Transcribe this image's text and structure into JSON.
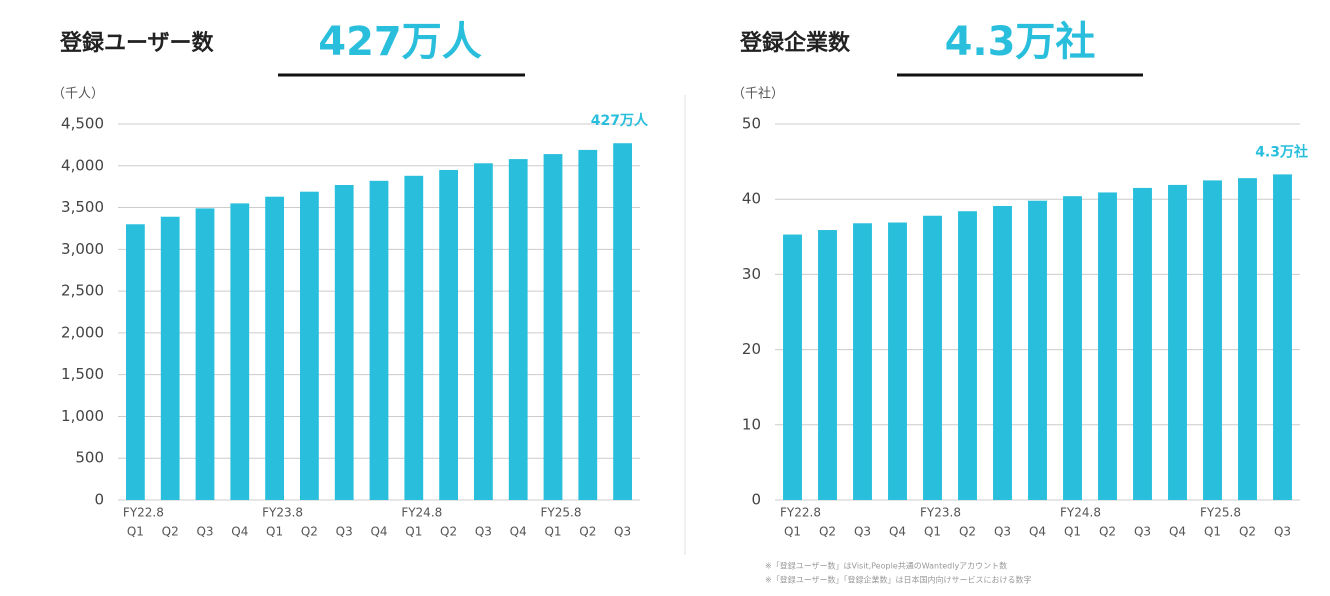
{
  "chart_data": [
    {
      "type": "bar",
      "title": "登録ユーザー数",
      "headline": "427万人",
      "unit_label": "（千人）",
      "annotation": "427万人",
      "categories": [
        "Q1",
        "Q2",
        "Q3",
        "Q4",
        "Q1",
        "Q2",
        "Q3",
        "Q4",
        "Q1",
        "Q2",
        "Q3",
        "Q4",
        "Q1",
        "Q2",
        "Q3"
      ],
      "x_groups": [
        "FY22.8",
        null,
        null,
        null,
        "FY23.8",
        null,
        null,
        null,
        "FY24.8",
        null,
        null,
        null,
        "FY25.8",
        null,
        null
      ],
      "values": [
        3300,
        3390,
        3490,
        3550,
        3630,
        3690,
        3770,
        3820,
        3880,
        3950,
        4030,
        4080,
        4140,
        4190,
        4270
      ],
      "color": "#29bfdc",
      "ylim": [
        0,
        4500
      ],
      "yticks": [
        0,
        500,
        {
          "value": 1000,
          "label": "1,000"
        },
        {
          "value": 1500,
          "label": "1,500"
        },
        {
          "value": 2000,
          "label": "2,000"
        },
        {
          "value": 2500,
          "label": "2,500"
        },
        {
          "value": 3000,
          "label": "3,000"
        },
        {
          "value": 3500,
          "label": "3,500"
        },
        {
          "value": 4000,
          "label": "4,000"
        },
        {
          "value": 4500,
          "label": "4,500"
        }
      ],
      "grid": true
    },
    {
      "type": "bar",
      "title": "登録企業数",
      "headline": "4.3万社",
      "unit_label": "（千社）",
      "annotation": "4.3万社",
      "categories": [
        "Q1",
        "Q2",
        "Q3",
        "Q4",
        "Q1",
        "Q2",
        "Q3",
        "Q4",
        "Q1",
        "Q2",
        "Q3",
        "Q4",
        "Q1",
        "Q2",
        "Q3"
      ],
      "x_groups": [
        "FY22.8",
        null,
        null,
        null,
        "FY23.8",
        null,
        null,
        null,
        "FY24.8",
        null,
        null,
        null,
        "FY25.8",
        null,
        null
      ],
      "values": [
        35.3,
        35.9,
        36.8,
        36.9,
        37.8,
        38.4,
        39.1,
        39.8,
        40.4,
        40.9,
        41.5,
        41.9,
        42.5,
        42.8,
        43.3
      ],
      "color": "#29bfdc",
      "ylim": [
        0,
        50
      ],
      "yticks": [
        0,
        10,
        20,
        30,
        40,
        50
      ],
      "grid": true
    }
  ],
  "notes": [
    "※「登録ユーザー数」はVisit,People共通のWantedlyアカウント数",
    "※「登録ユーザー数」「登録企業数」は日本国内向けサービスにおける数字"
  ]
}
